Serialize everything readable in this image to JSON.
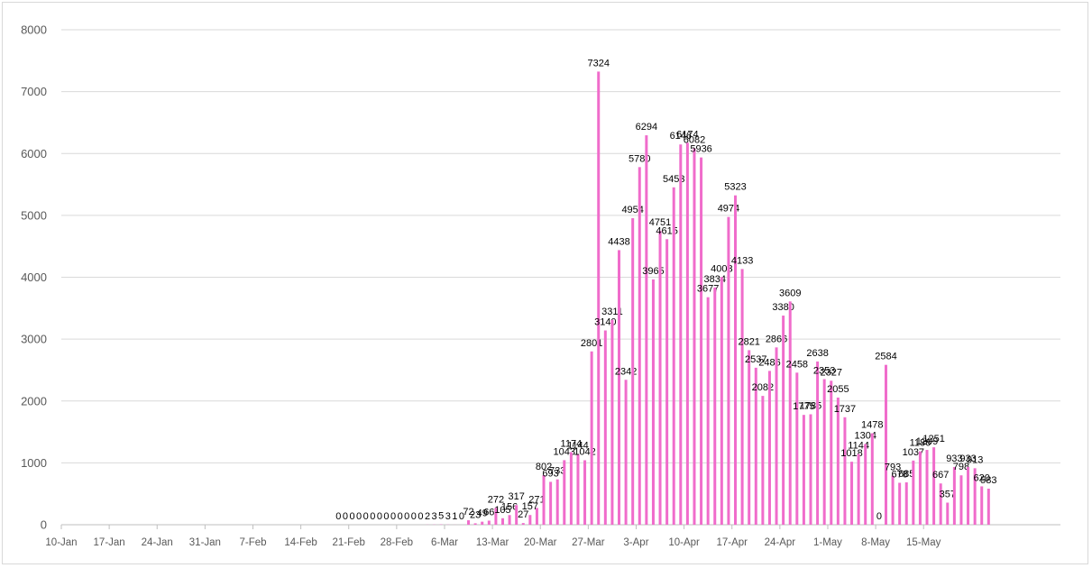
{
  "chart_data": {
    "type": "bar",
    "title": "",
    "xlabel": "",
    "ylabel": "",
    "ylim": [
      0,
      8000
    ],
    "yticks": [
      0,
      1000,
      2000,
      3000,
      4000,
      5000,
      6000,
      7000,
      8000
    ],
    "grid": true,
    "legend": "none",
    "bar_color": "#f06ccb",
    "start_date": "10-Jan",
    "xtick_labels": [
      "10-Jan",
      "17-Jan",
      "24-Jan",
      "31-Jan",
      "7-Feb",
      "14-Feb",
      "21-Feb",
      "28-Feb",
      "6-Mar",
      "13-Mar",
      "20-Mar",
      "27-Mar",
      "3-Apr",
      "10-Apr",
      "17-Apr",
      "24-Apr",
      "1-May",
      "8-May",
      "15-May"
    ],
    "xtick_every_days": 7,
    "series": [
      {
        "start_offset_days": 40,
        "values": [
          0,
          0,
          0,
          0,
          0,
          0,
          0,
          0,
          0,
          0,
          0,
          0,
          0,
          2,
          3,
          5,
          3,
          1,
          0,
          72,
          23,
          49,
          66,
          272,
          105,
          156,
          317,
          27,
          157,
          271,
          802,
          693,
          733,
          1043,
          1174,
          1144,
          1042,
          2801,
          7324,
          3140,
          3311,
          4438,
          2342,
          4954,
          5780,
          6294,
          3965,
          4751,
          4615,
          5453,
          6146,
          6174,
          6082,
          5936,
          3677,
          3834,
          4003,
          4974,
          5323,
          4133,
          2821,
          2537,
          2082,
          2486,
          2866,
          3380,
          3609,
          2458,
          1775,
          1785,
          2638,
          2353,
          2327,
          2055,
          1737,
          1018,
          1144,
          1304,
          1478,
          0,
          2584,
          793,
          678,
          685,
          1037,
          1186,
          1209,
          1251,
          667,
          357,
          933,
          798,
          933,
          913,
          620,
          583
        ]
      }
    ]
  }
}
